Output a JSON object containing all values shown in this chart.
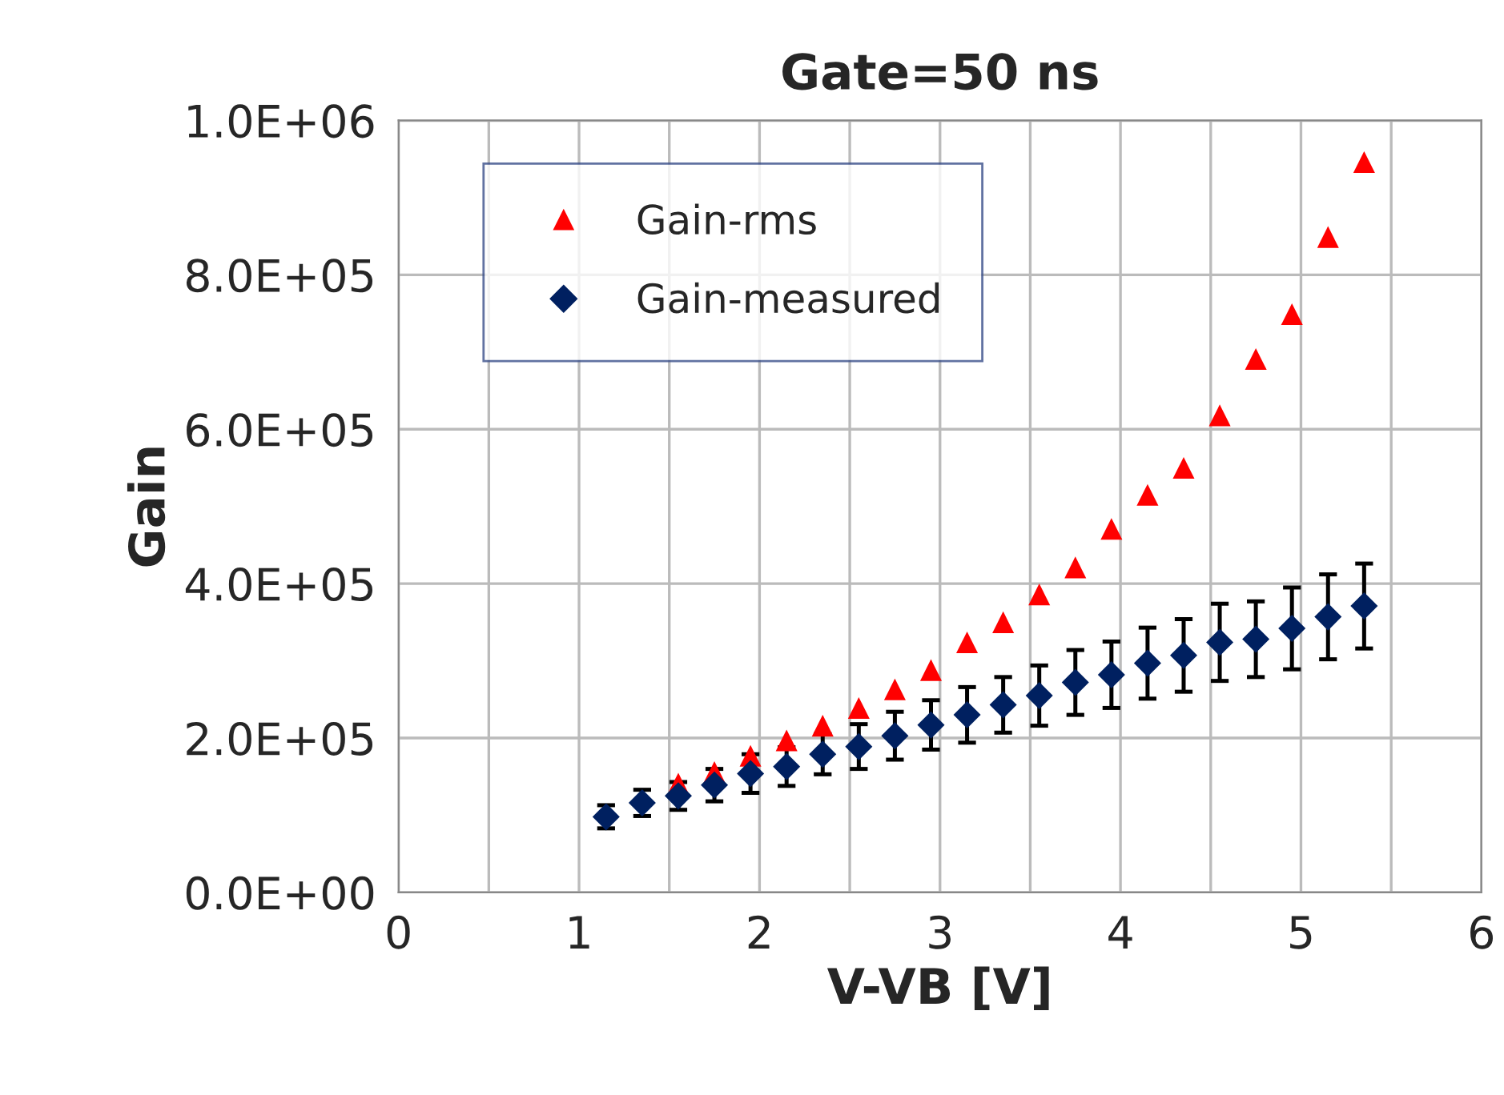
{
  "chart_data": {
    "type": "scatter",
    "title": "Gate=50 ns",
    "xlabel": "V-VB [V]",
    "ylabel": "Gain",
    "x": [
      1.15,
      1.35,
      1.55,
      1.75,
      1.95,
      2.15,
      2.35,
      2.55,
      2.75,
      2.95,
      3.15,
      3.35,
      3.55,
      3.75,
      3.95,
      4.15,
      4.35,
      4.55,
      4.75,
      4.95,
      5.15,
      5.35
    ],
    "series": [
      {
        "name": "Gain-rms",
        "color": "#ff0000",
        "marker": "triangle",
        "values": [
          null,
          null,
          141000,
          156000,
          177000,
          197000,
          216000,
          239000,
          263000,
          288000,
          324000,
          350000,
          386000,
          421000,
          471000,
          515000,
          550000,
          618000,
          691000,
          749000,
          849000,
          946000
        ]
      },
      {
        "name": "Gain-measured",
        "color": "#002060",
        "marker": "diamond",
        "values": [
          98000,
          116000,
          125000,
          139000,
          154000,
          163000,
          179000,
          189000,
          203000,
          217000,
          230000,
          243000,
          255000,
          272000,
          282000,
          297000,
          307000,
          324000,
          328000,
          342000,
          357000,
          371000
        ],
        "errors": [
          15000,
          17000,
          18000,
          21000,
          25000,
          25000,
          26000,
          29000,
          31000,
          32000,
          36000,
          36000,
          39000,
          42000,
          43000,
          46000,
          47000,
          50000,
          49000,
          53000,
          55000,
          55000
        ]
      }
    ],
    "xlim": [
      0,
      6
    ],
    "xticks": [
      0,
      {
        "value": 0.5,
        "label": null
      },
      1,
      {
        "value": 1.5,
        "label": null
      },
      2,
      {
        "value": 2.5,
        "label": null
      },
      3,
      {
        "value": 3.5,
        "label": null
      },
      4,
      {
        "value": 4.5,
        "label": null
      },
      5,
      {
        "value": 5.5,
        "label": null
      },
      6
    ],
    "ylim": [
      0,
      1000000
    ],
    "yticks": [
      {
        "value": 0,
        "label": "0.0E+00"
      },
      {
        "value": 200000,
        "label": "2.0E+05"
      },
      {
        "value": 400000,
        "label": "4.0E+05"
      },
      {
        "value": 600000,
        "label": "6.0E+05"
      },
      {
        "value": 800000,
        "label": "8.0E+05"
      },
      {
        "value": 1000000,
        "label": "1.0E+06"
      }
    ],
    "grid": true,
    "legend": "top left"
  }
}
